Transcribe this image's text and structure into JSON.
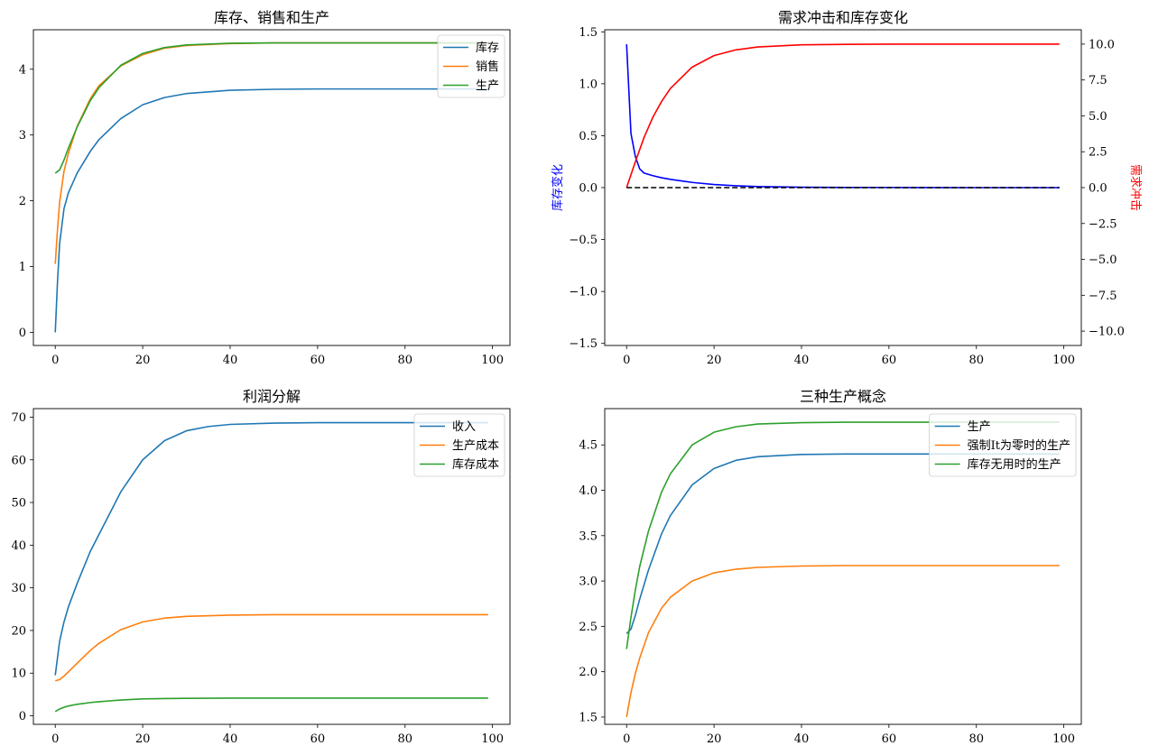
{
  "colors": {
    "blue": "#1f77b4",
    "orange": "#ff7f0e",
    "green": "#2ca02c",
    "red": "#ff0000",
    "pureblue": "#0000ff",
    "black": "#000000"
  },
  "chart_data": [
    {
      "type": "line",
      "title": "库存、销售和生产",
      "xlabel": "",
      "ylabel": "",
      "xlim": [
        -5,
        104
      ],
      "ylim": [
        -0.2,
        4.6
      ],
      "xticks": [
        0,
        20,
        40,
        60,
        80,
        100
      ],
      "yticks": [
        0,
        1,
        2,
        3,
        4
      ],
      "legend": "top-right",
      "grid": false,
      "series": [
        {
          "name": "库存",
          "color": "#1f77b4",
          "x": [
            0,
            0.5,
            1,
            2,
            3,
            5,
            8,
            10,
            15,
            20,
            25,
            30,
            40,
            50,
            60,
            80,
            99
          ],
          "y": [
            0.0,
            0.75,
            1.35,
            1.88,
            2.12,
            2.42,
            2.75,
            2.93,
            3.25,
            3.46,
            3.57,
            3.63,
            3.68,
            3.695,
            3.7,
            3.7,
            3.7
          ]
        },
        {
          "name": "销售",
          "color": "#ff7f0e",
          "x": [
            0,
            0.5,
            1,
            2,
            3,
            5,
            8,
            10,
            15,
            20,
            25,
            30,
            40,
            50,
            60,
            80,
            99
          ],
          "y": [
            1.04,
            1.55,
            1.98,
            2.45,
            2.72,
            3.13,
            3.55,
            3.75,
            4.05,
            4.22,
            4.32,
            4.36,
            4.39,
            4.4,
            4.4,
            4.4,
            4.4
          ]
        },
        {
          "name": "生产",
          "color": "#2ca02c",
          "x": [
            0,
            1,
            2,
            3,
            5,
            8,
            10,
            15,
            20,
            25,
            30,
            40,
            50,
            60,
            80,
            99
          ],
          "y": [
            2.42,
            2.47,
            2.62,
            2.8,
            3.12,
            3.52,
            3.72,
            4.06,
            4.24,
            4.33,
            4.37,
            4.395,
            4.4,
            4.4,
            4.4,
            4.4
          ]
        }
      ]
    },
    {
      "type": "line",
      "title": "需求冲击和库存变化",
      "xlabel": "",
      "ylabel": "库存变化",
      "ylabel_right": "需求冲击",
      "xlim": [
        -5,
        104
      ],
      "ylim": [
        -1.52,
        1.52
      ],
      "ylim_right": [
        -11,
        11
      ],
      "xticks": [
        0,
        20,
        40,
        60,
        80,
        100
      ],
      "yticks": [
        -1.5,
        -1.0,
        -0.5,
        0.0,
        0.5,
        1.0,
        1.5
      ],
      "yticks_right": [
        -10.0,
        -7.5,
        -5.0,
        -2.5,
        0.0,
        2.5,
        5.0,
        7.5,
        10.0
      ],
      "grid": false,
      "series": [
        {
          "axis": "left",
          "color": "#0000ff",
          "x": [
            0,
            1,
            2,
            3,
            4,
            6,
            8,
            10,
            15,
            20,
            25,
            30,
            40,
            50,
            60,
            80,
            99
          ],
          "y": [
            1.38,
            0.52,
            0.3,
            0.18,
            0.14,
            0.115,
            0.095,
            0.08,
            0.05,
            0.03,
            0.018,
            0.01,
            0.004,
            0.002,
            0.001,
            0.0,
            0.0
          ]
        },
        {
          "axis": "right",
          "color": "#ff0000",
          "x": [
            0,
            2,
            4,
            6,
            8,
            10,
            15,
            20,
            25,
            30,
            40,
            50,
            60,
            80,
            99
          ],
          "y": [
            0.0,
            1.8,
            3.5,
            4.9,
            6.0,
            6.9,
            8.4,
            9.2,
            9.6,
            9.8,
            9.95,
            9.98,
            10.0,
            10.0,
            10.0
          ]
        },
        {
          "axis": "left",
          "color": "#000000",
          "dashed": true,
          "x": [
            0,
            99
          ],
          "y": [
            0.0,
            0.0
          ]
        }
      ]
    },
    {
      "type": "line",
      "title": "利润分解",
      "xlabel": "",
      "ylabel": "",
      "xlim": [
        -5,
        104
      ],
      "ylim": [
        -2,
        72
      ],
      "xticks": [
        0,
        20,
        40,
        60,
        80,
        100
      ],
      "yticks": [
        0,
        10,
        20,
        30,
        40,
        50,
        60,
        70
      ],
      "legend": "top-right",
      "grid": false,
      "series": [
        {
          "name": "收入",
          "color": "#1f77b4",
          "x": [
            0,
            1,
            2,
            3,
            5,
            8,
            10,
            15,
            20,
            25,
            30,
            35,
            40,
            50,
            60,
            80,
            99
          ],
          "y": [
            9.5,
            17.5,
            22.0,
            25.5,
            31.0,
            38.5,
            42.5,
            52.5,
            60.0,
            64.5,
            66.8,
            67.8,
            68.3,
            68.6,
            68.7,
            68.7,
            68.7
          ]
        },
        {
          "name": "生产成本",
          "color": "#ff7f0e",
          "x": [
            0,
            1,
            2,
            3,
            5,
            8,
            10,
            15,
            20,
            25,
            30,
            40,
            50,
            60,
            80,
            99
          ],
          "y": [
            8.2,
            8.5,
            9.3,
            10.3,
            12.3,
            15.3,
            17.0,
            20.2,
            22.0,
            22.9,
            23.3,
            23.6,
            23.7,
            23.7,
            23.7,
            23.7
          ]
        },
        {
          "name": "库存成本",
          "color": "#2ca02c",
          "x": [
            0,
            1,
            2,
            3,
            5,
            8,
            10,
            15,
            20,
            25,
            30,
            40,
            50,
            60,
            80,
            99
          ],
          "y": [
            1.0,
            1.6,
            2.0,
            2.3,
            2.7,
            3.1,
            3.3,
            3.7,
            3.95,
            4.05,
            4.1,
            4.15,
            4.15,
            4.15,
            4.15,
            4.15
          ]
        }
      ]
    },
    {
      "type": "line",
      "title": "三种生产概念",
      "xlabel": "",
      "ylabel": "",
      "xlim": [
        -5,
        104
      ],
      "ylim": [
        1.42,
        4.9
      ],
      "xticks": [
        0,
        20,
        40,
        60,
        80,
        100
      ],
      "yticks": [
        1.5,
        2.0,
        2.5,
        3.0,
        3.5,
        4.0,
        4.5
      ],
      "legend": "top-right",
      "grid": false,
      "series": [
        {
          "name": "生产",
          "color": "#1f77b4",
          "x": [
            0,
            1,
            2,
            3,
            5,
            8,
            10,
            15,
            20,
            25,
            30,
            40,
            50,
            60,
            80,
            99
          ],
          "y": [
            2.42,
            2.47,
            2.62,
            2.8,
            3.12,
            3.52,
            3.72,
            4.06,
            4.24,
            4.33,
            4.37,
            4.395,
            4.4,
            4.4,
            4.4,
            4.4
          ]
        },
        {
          "name": "强制It为零时的生产",
          "color": "#ff7f0e",
          "x": [
            0,
            1,
            2,
            3,
            5,
            8,
            10,
            15,
            20,
            25,
            30,
            40,
            50,
            60,
            80,
            99
          ],
          "y": [
            1.5,
            1.77,
            1.98,
            2.15,
            2.43,
            2.7,
            2.82,
            3.0,
            3.09,
            3.13,
            3.15,
            3.165,
            3.17,
            3.17,
            3.17,
            3.17
          ]
        },
        {
          "name": "库存无用时的生产",
          "color": "#2ca02c",
          "x": [
            0,
            1,
            2,
            3,
            5,
            8,
            10,
            15,
            20,
            25,
            30,
            40,
            50,
            60,
            80,
            99
          ],
          "y": [
            2.25,
            2.6,
            2.9,
            3.16,
            3.55,
            3.98,
            4.18,
            4.5,
            4.64,
            4.7,
            4.73,
            4.745,
            4.75,
            4.75,
            4.75,
            4.75
          ]
        }
      ]
    }
  ]
}
